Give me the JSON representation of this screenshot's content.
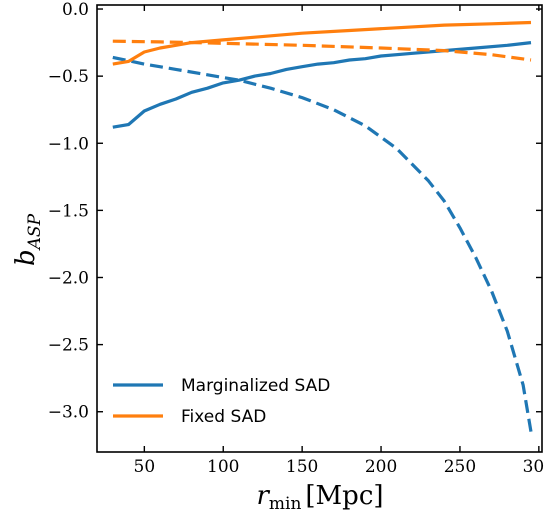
{
  "chart_data": {
    "type": "line",
    "xlabel": {
      "base": "r",
      "sub": "min",
      "unit": "[Mpc]"
    },
    "ylabel": {
      "base": "b",
      "sub": "ASP"
    },
    "xlim": [
      20,
      302
    ],
    "ylim": [
      -3.3,
      0.03
    ],
    "xticks": [
      50,
      100,
      150,
      200,
      250,
      300
    ],
    "yticks": [
      0.0,
      -0.5,
      -1.0,
      -1.5,
      -2.0,
      -2.5,
      -3.0
    ],
    "xtick_labels": [
      "50",
      "100",
      "150",
      "200",
      "250",
      "300"
    ],
    "ytick_labels": [
      "0.0",
      "−0.5",
      "−1.0",
      "−1.5",
      "−2.0",
      "−2.5",
      "−3.0"
    ],
    "grid": false,
    "legend_position": "bottom-left",
    "legend": [
      "Marginalized SAD",
      "Fixed SAD"
    ],
    "colors": {
      "blue": "#1f77b4",
      "orange": "#ff7f0e"
    },
    "series": [
      {
        "name": "Marginalized SAD",
        "color": "#1f77b4",
        "style": "solid",
        "x": [
          30,
          40,
          50,
          60,
          70,
          80,
          90,
          100,
          110,
          120,
          130,
          140,
          150,
          160,
          170,
          180,
          190,
          200,
          220,
          240,
          260,
          280,
          295
        ],
        "y": [
          -0.88,
          -0.86,
          -0.76,
          -0.71,
          -0.67,
          -0.62,
          -0.59,
          -0.55,
          -0.53,
          -0.5,
          -0.48,
          -0.45,
          -0.43,
          -0.41,
          -0.4,
          -0.38,
          -0.37,
          -0.35,
          -0.33,
          -0.31,
          -0.29,
          -0.27,
          -0.25
        ]
      },
      {
        "name": "Marginalized SAD (dashed)",
        "color": "#1f77b4",
        "style": "dashed",
        "x": [
          30,
          50,
          70,
          90,
          110,
          130,
          150,
          170,
          190,
          210,
          230,
          240,
          250,
          260,
          270,
          280,
          290,
          295
        ],
        "y": [
          -0.36,
          -0.41,
          -0.45,
          -0.49,
          -0.53,
          -0.59,
          -0.66,
          -0.75,
          -0.87,
          -1.04,
          -1.28,
          -1.43,
          -1.63,
          -1.85,
          -2.1,
          -2.4,
          -2.8,
          -3.15
        ]
      },
      {
        "name": "Fixed SAD",
        "color": "#ff7f0e",
        "style": "solid",
        "x": [
          30,
          40,
          50,
          60,
          70,
          80,
          100,
          120,
          150,
          180,
          210,
          240,
          270,
          295
        ],
        "y": [
          -0.41,
          -0.39,
          -0.32,
          -0.29,
          -0.27,
          -0.25,
          -0.23,
          -0.21,
          -0.18,
          -0.16,
          -0.14,
          -0.12,
          -0.11,
          -0.1
        ]
      },
      {
        "name": "Fixed SAD (dashed)",
        "color": "#ff7f0e",
        "style": "dashed",
        "x": [
          30,
          60,
          100,
          150,
          200,
          240,
          270,
          295
        ],
        "y": [
          -0.24,
          -0.245,
          -0.255,
          -0.27,
          -0.29,
          -0.31,
          -0.34,
          -0.38
        ]
      }
    ]
  }
}
